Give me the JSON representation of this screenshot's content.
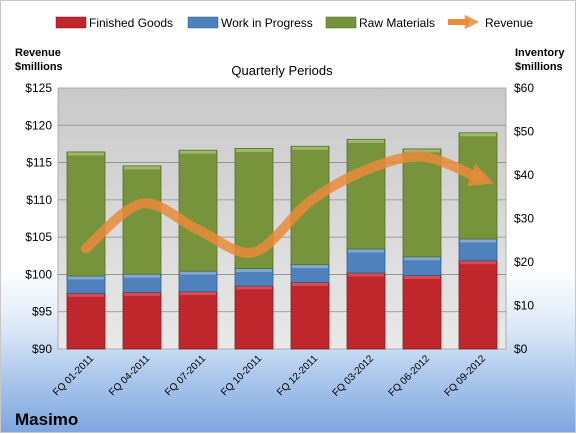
{
  "company": "Masimo",
  "chart_data": {
    "type": "bar",
    "stacked": true,
    "title": "Quarterly Periods",
    "categories": [
      "FQ 01-2011",
      "FQ 04-2011",
      "FQ 07-2011",
      "FQ 10-2011",
      "FQ 12-2011",
      "FQ 03-2012",
      "FQ 06-2012",
      "FQ 09-2012"
    ],
    "left_axis": {
      "label_line1": "Revenue",
      "label_line2": "$millions",
      "min": 90,
      "max": 125,
      "step": 5,
      "ticks": [
        "$90",
        "$95",
        "$100",
        "$105",
        "$110",
        "$115",
        "$120",
        "$125"
      ]
    },
    "right_axis": {
      "label_line1": "Inventory",
      "label_line2": "$millions",
      "min": 0,
      "max": 60,
      "step": 10,
      "ticks": [
        "$0",
        "$10",
        "$20",
        "$30",
        "$40",
        "$50",
        "$60"
      ]
    },
    "series": [
      {
        "name": "Finished Goods",
        "axis": "right",
        "color": "#c0272d",
        "values": [
          12.8,
          13.0,
          13.2,
          14.5,
          15.3,
          17.5,
          16.9,
          20.3
        ]
      },
      {
        "name": "Work in Progress",
        "axis": "right",
        "color": "#4f81bd",
        "values": [
          4.0,
          4.2,
          4.7,
          4.0,
          4.1,
          5.5,
          4.3,
          5.0
        ]
      },
      {
        "name": "Raw Materials",
        "axis": "right",
        "color": "#77933c",
        "values": [
          28.5,
          24.9,
          27.8,
          27.6,
          27.2,
          25.2,
          24.8,
          24.4
        ]
      },
      {
        "name": "Revenue",
        "axis": "left",
        "color": "#e98b3a",
        "type": "line",
        "values": [
          103.5,
          109.5,
          106,
          103,
          109.8,
          114,
          115.8,
          113
        ]
      }
    ],
    "legend": "top"
  }
}
